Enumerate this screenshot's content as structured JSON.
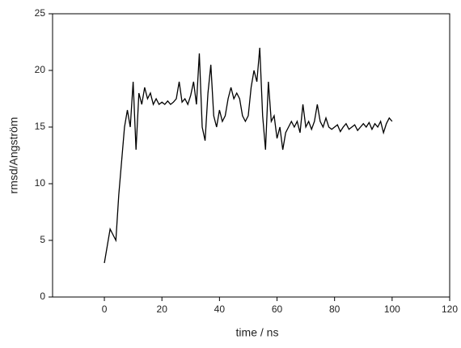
{
  "chart_data": {
    "type": "line",
    "xlabel": "time / ns",
    "ylabel": "rmsd/Angström",
    "x": [
      0,
      1,
      2,
      3,
      4,
      5,
      6,
      7,
      8,
      9,
      10,
      11,
      12,
      13,
      14,
      15,
      16,
      17,
      18,
      19,
      20,
      21,
      22,
      23,
      24,
      25,
      26,
      27,
      28,
      29,
      30,
      31,
      32,
      33,
      34,
      35,
      36,
      37,
      38,
      39,
      40,
      41,
      42,
      43,
      44,
      45,
      46,
      47,
      48,
      49,
      50,
      51,
      52,
      53,
      54,
      55,
      56,
      57,
      58,
      59,
      60,
      61,
      62,
      63,
      64,
      65,
      66,
      67,
      68,
      69,
      70,
      71,
      72,
      73,
      74,
      75,
      76,
      77,
      78,
      79,
      80,
      81,
      82,
      83,
      84,
      85,
      86,
      87,
      88,
      89,
      90,
      91,
      92,
      93,
      94,
      95,
      96,
      97,
      98,
      99,
      100
    ],
    "series": [
      {
        "name": "rmsd",
        "color": "#000000",
        "values": [
          3,
          4.5,
          6,
          5.5,
          5,
          9,
          12,
          15,
          16.5,
          15,
          19,
          13,
          18,
          17,
          18.5,
          17.5,
          18,
          17,
          17.5,
          17,
          17.2,
          17,
          17.3,
          17,
          17.2,
          17.5,
          19,
          17.2,
          17.5,
          17,
          17.8,
          19,
          17,
          21.5,
          15,
          13.8,
          18,
          20.5,
          16,
          15,
          16.5,
          15.5,
          16,
          17.5,
          18.5,
          17.5,
          18,
          17.5,
          16,
          15.5,
          16,
          18.5,
          20,
          19,
          22,
          16,
          13,
          19,
          15.5,
          16,
          14,
          15,
          13,
          14.5,
          15,
          15.5,
          15,
          15.5,
          14.5,
          17,
          15,
          15.5,
          14.8,
          15.5,
          17,
          15.5,
          15,
          15.8,
          15,
          14.8,
          15,
          15.2,
          14.6,
          15,
          15.3,
          14.8,
          15,
          15.2,
          14.7,
          15,
          15.3,
          15,
          15.4,
          14.8,
          15.3,
          15,
          15.5,
          14.5,
          15.3,
          15.8,
          15.5
        ]
      }
    ],
    "xlim": [
      -18,
      120
    ],
    "xticks": [
      0,
      20,
      40,
      60,
      80,
      100,
      120
    ],
    "ylim": [
      0,
      25
    ],
    "yticks": [
      0,
      5,
      10,
      15,
      20,
      25
    ]
  }
}
